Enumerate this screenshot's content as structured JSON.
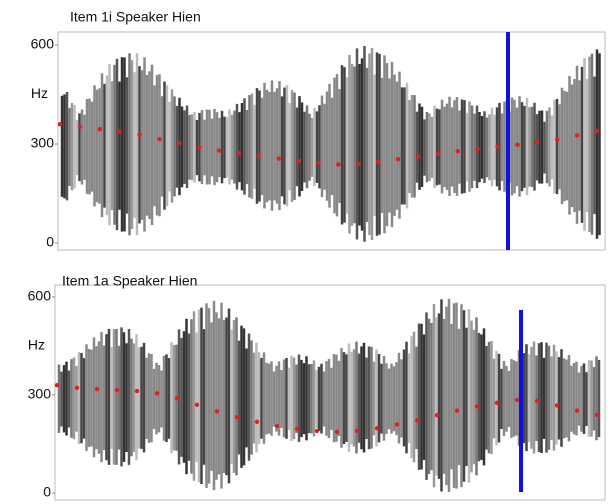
{
  "chart_data": [
    {
      "type": "line",
      "title": "Item 1i Speaker Hien",
      "y_label": "Hz",
      "ylim": [
        0,
        600
      ],
      "yticks": [
        0,
        300,
        600
      ],
      "color": "#e02020",
      "values": [
        360,
        352,
        345,
        338,
        328,
        315,
        302,
        290,
        280,
        272,
        264,
        256,
        248,
        242,
        238,
        240,
        246,
        254,
        262,
        270,
        278,
        285,
        292,
        298,
        305,
        314,
        326,
        340
      ]
    },
    {
      "type": "line",
      "title": "Item 1a Speaker Hien",
      "y_label": "Hz",
      "ylim": [
        0,
        600
      ],
      "yticks": [
        0,
        300,
        600
      ],
      "color": "#e02020",
      "values": [
        330,
        322,
        318,
        315,
        312,
        305,
        290,
        270,
        250,
        232,
        218,
        205,
        196,
        190,
        187,
        190,
        198,
        210,
        222,
        238,
        252,
        265,
        276,
        285,
        282,
        268,
        252,
        239
      ]
    }
  ]
}
